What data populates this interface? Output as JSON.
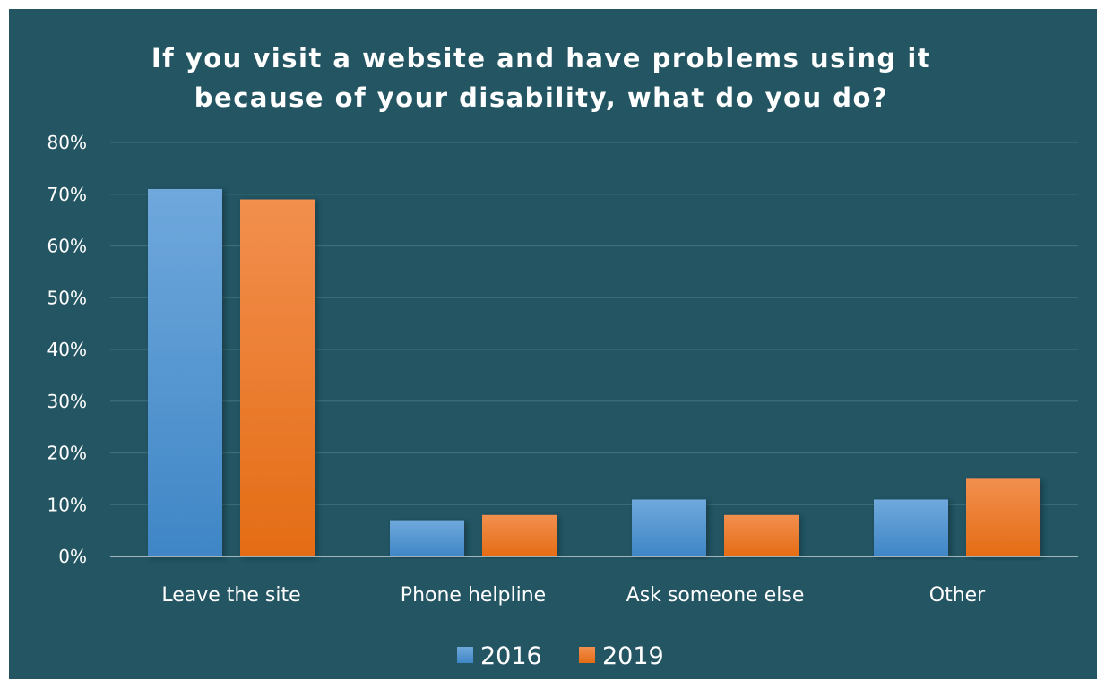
{
  "colors": {
    "background": "#235563",
    "grid": "#3d6e7b",
    "axis": "#c9d6da",
    "series_2016": "#5b9bd5",
    "series_2019": "#ed7d31"
  },
  "chart_data": {
    "type": "bar",
    "title": "If you visit a website and have problems using it because of your disability, what do you do?",
    "title_lines": [
      "If you visit a website and have problems using it",
      "because of your disability, what do you do?"
    ],
    "categories": [
      "Leave the site",
      "Phone helpline",
      "Ask someone else",
      "Other"
    ],
    "series": [
      {
        "name": "2016",
        "values": [
          71,
          7,
          11,
          11
        ]
      },
      {
        "name": "2019",
        "values": [
          69,
          8,
          8,
          15
        ]
      }
    ],
    "ylim": [
      0,
      80
    ],
    "yticks": [
      0,
      10,
      20,
      30,
      40,
      50,
      60,
      70,
      80
    ],
    "ytick_labels": [
      "0%",
      "10%",
      "20%",
      "30%",
      "40%",
      "50%",
      "60%",
      "70%",
      "80%"
    ],
    "xlabel": "",
    "ylabel": "",
    "grid": true,
    "legend_position": "bottom"
  }
}
